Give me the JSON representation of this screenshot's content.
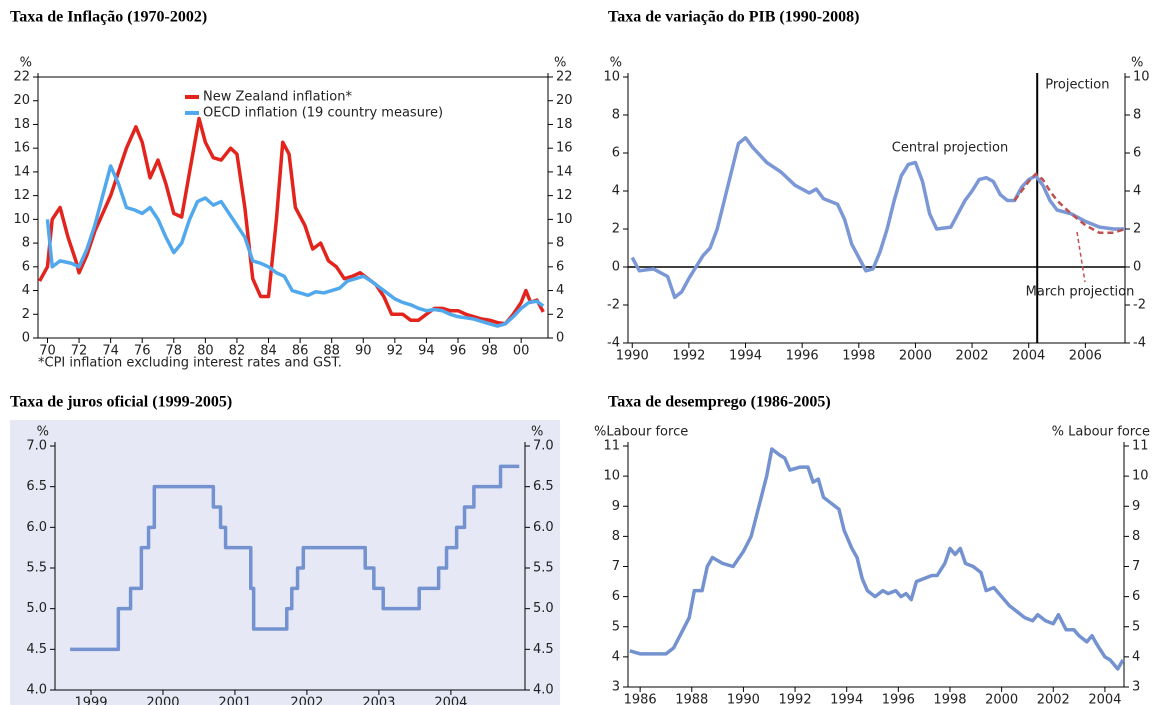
{
  "chart_data": [
    {
      "type": "line",
      "title": "Taxa de Inflação (1970-2002)",
      "y_unit_left": "%",
      "y_unit_right": "%",
      "xlim": [
        1969.4,
        2001.7
      ],
      "xticks": [
        {
          "value": 1970,
          "label": "70"
        },
        {
          "value": 1972,
          "label": "72"
        },
        {
          "value": 1974,
          "label": "74"
        },
        {
          "value": 1976,
          "label": "76"
        },
        {
          "value": 1978,
          "label": "78"
        },
        {
          "value": 1980,
          "label": "80"
        },
        {
          "value": 1982,
          "label": "82"
        },
        {
          "value": 1984,
          "label": "84"
        },
        {
          "value": 1986,
          "label": "86"
        },
        {
          "value": 1988,
          "label": "88"
        },
        {
          "value": 1990,
          "label": "90"
        },
        {
          "value": 1992,
          "label": "92"
        },
        {
          "value": 1994,
          "label": "94"
        },
        {
          "value": 1996,
          "label": "96"
        },
        {
          "value": 1998,
          "label": "98"
        },
        {
          "value": 2000,
          "label": "00"
        }
      ],
      "ylim": [
        0,
        22
      ],
      "yticks": [
        0,
        2,
        4,
        6,
        8,
        10,
        12,
        14,
        16,
        18,
        20,
        22
      ],
      "legend": "top",
      "note": "*CPI inflation excluding interest rates and GST.",
      "series": [
        {
          "name": "New Zealand inflation*",
          "color": "#e3241c",
          "x": [
            1969.5,
            1970,
            1970.3,
            1970.8,
            1971.3,
            1971.8,
            1972,
            1972.5,
            1973,
            1973.5,
            1974,
            1974.5,
            1975,
            1975.6,
            1976,
            1976.5,
            1977,
            1977.5,
            1978,
            1978.5,
            1979,
            1979.6,
            1980,
            1980.5,
            1981,
            1981.6,
            1982,
            1982.5,
            1983,
            1983.5,
            1984,
            1984.5,
            1984.9,
            1985.3,
            1985.7,
            1986.3,
            1986.8,
            1987.3,
            1987.8,
            1988.3,
            1988.8,
            1989.3,
            1989.8,
            1990.3,
            1990.8,
            1991.3,
            1991.8,
            1992.5,
            1993,
            1993.5,
            1994,
            1994.5,
            1995,
            1995.5,
            1996,
            1996.5,
            1997,
            1997.5,
            1998,
            1998.5,
            1999,
            1999.5,
            2000,
            2000.3,
            2000.6,
            2001,
            2001.4
          ],
          "values": [
            4.8,
            6,
            10,
            11,
            8.5,
            6.5,
            5.5,
            7,
            9,
            10.5,
            12,
            14,
            16,
            17.8,
            16.5,
            13.5,
            15,
            13,
            10.5,
            10.2,
            14,
            18.5,
            16.5,
            15.2,
            15,
            16,
            15.5,
            11,
            5,
            3.5,
            3.5,
            10,
            16.5,
            15.5,
            11,
            9.5,
            7.5,
            8,
            6.5,
            6,
            5,
            5.2,
            5.5,
            5,
            4.5,
            3.5,
            2,
            2,
            1.5,
            1.5,
            2,
            2.5,
            2.5,
            2.3,
            2.3,
            2,
            1.8,
            1.6,
            1.5,
            1.3,
            1.2,
            2,
            3,
            4,
            3,
            3.2,
            2.2
          ]
        },
        {
          "name": "OECD inflation (19 country measure)",
          "color": "#52a8ec",
          "x": [
            1970,
            1970.3,
            1970.8,
            1971.5,
            1972,
            1972.5,
            1973,
            1973.5,
            1974,
            1974.5,
            1975,
            1975.5,
            1976,
            1976.5,
            1977,
            1977.5,
            1978,
            1978.5,
            1979,
            1979.5,
            1980,
            1980.5,
            1981,
            1981.5,
            1982,
            1982.5,
            1983,
            1983.5,
            1984,
            1984.5,
            1985,
            1985.5,
            1986,
            1986.5,
            1987,
            1987.5,
            1988,
            1988.5,
            1989,
            1989.5,
            1990,
            1990.5,
            1991,
            1991.5,
            1992,
            1992.5,
            1993,
            1993.5,
            1994,
            1994.5,
            1995,
            1995.5,
            1996,
            1996.5,
            1997,
            1997.5,
            1998,
            1998.5,
            1999,
            1999.5,
            2000,
            2000.5,
            2001,
            2001.4
          ],
          "values": [
            10,
            6,
            6.5,
            6.3,
            6,
            7.5,
            9.5,
            12,
            14.5,
            13,
            11,
            10.8,
            10.5,
            11,
            10,
            8.5,
            7.2,
            8,
            10,
            11.5,
            11.8,
            11.2,
            11.5,
            10.5,
            9.5,
            8.5,
            6.5,
            6.3,
            6,
            5.5,
            5.2,
            4,
            3.8,
            3.6,
            3.9,
            3.8,
            4,
            4.2,
            4.8,
            5,
            5.2,
            4.8,
            4.3,
            3.8,
            3.3,
            3,
            2.8,
            2.5,
            2.3,
            2.4,
            2.3,
            2,
            1.8,
            1.7,
            1.6,
            1.4,
            1.2,
            1,
            1.2,
            1.8,
            2.5,
            3,
            3.1,
            2.7
          ]
        }
      ]
    },
    {
      "type": "line",
      "title": "Taxa de variação do PIB (1990-2008)",
      "y_unit_left": "%",
      "y_unit_right": "%",
      "xlim": [
        1989.85,
        2007.4
      ],
      "xticks": [
        1990,
        1992,
        1994,
        1996,
        1998,
        2000,
        2002,
        2004,
        2006
      ],
      "ylim": [
        -4,
        10
      ],
      "yticks": [
        -4,
        -2,
        0,
        2,
        4,
        6,
        8,
        10
      ],
      "hline": 0,
      "vline": {
        "value": 2004.3,
        "label": "Projection"
      },
      "series": [
        {
          "name": "Central projection",
          "color": "#7b97d6",
          "x": [
            1990,
            1990.25,
            1990.75,
            1991.25,
            1991.5,
            1991.75,
            1992,
            1992.5,
            1992.75,
            1993,
            1993.25,
            1993.5,
            1993.75,
            1994,
            1994.25,
            1994.75,
            1995.25,
            1995.75,
            1996.25,
            1996.5,
            1996.75,
            1997.25,
            1997.5,
            1997.75,
            1998,
            1998.25,
            1998.5,
            1998.75,
            1999,
            1999.25,
            1999.5,
            1999.75,
            2000,
            2000.25,
            2000.5,
            2000.75,
            2001.25,
            2001.5,
            2001.75,
            2002,
            2002.25,
            2002.5,
            2002.75,
            2003,
            2003.25,
            2003.5,
            2003.75,
            2004,
            2004.25,
            2004.5,
            2004.75,
            2005,
            2005.5,
            2006,
            2006.5,
            2007,
            2007.4
          ],
          "values": [
            0.5,
            -0.2,
            -0.1,
            -0.5,
            -1.6,
            -1.3,
            -0.6,
            0.6,
            1,
            2,
            3.5,
            5,
            6.5,
            6.8,
            6.3,
            5.5,
            5,
            4.3,
            3.9,
            4.1,
            3.6,
            3.3,
            2.5,
            1.2,
            0.5,
            -0.2,
            -0.1,
            0.8,
            2,
            3.5,
            4.8,
            5.4,
            5.5,
            4.5,
            2.8,
            2,
            2.1,
            2.8,
            3.5,
            4,
            4.6,
            4.7,
            4.5,
            3.8,
            3.5,
            3.5,
            4.2,
            4.6,
            4.8,
            4.3,
            3.5,
            3,
            2.8,
            2.4,
            2.1,
            2,
            2
          ]
        },
        {
          "name": "March projection",
          "color": "#c0504d",
          "linestyle": "dashed",
          "x": [
            2003.5,
            2003.75,
            2004,
            2004.25,
            2004.5,
            2004.75,
            2005,
            2005.5,
            2006,
            2006.5,
            2007,
            2007.4
          ],
          "values": [
            3.5,
            4,
            4.5,
            4.9,
            4.6,
            4,
            3.5,
            2.8,
            2.2,
            1.8,
            1.8,
            2
          ]
        }
      ]
    },
    {
      "type": "step",
      "title": "Taxa de juros oficial (1999-2005)",
      "y_unit_left": "%",
      "y_unit_right": "%",
      "xlim": [
        1999,
        2005.53
      ],
      "xticks": [
        {
          "value": 1999.5,
          "label": "1999"
        },
        {
          "value": 2000.5,
          "label": "2000"
        },
        {
          "value": 2001.5,
          "label": "2001"
        },
        {
          "value": 2002.5,
          "label": "2002"
        },
        {
          "value": 2003.5,
          "label": "2003"
        },
        {
          "value": 2004.5,
          "label": "2004"
        }
      ],
      "ylim": [
        4,
        7
      ],
      "yticks": [
        {
          "value": 4,
          "label": "4.0"
        },
        4.5,
        {
          "value": 5,
          "label": "5.0"
        },
        5.5,
        {
          "value": 6,
          "label": "6.0"
        },
        6.5,
        {
          "value": 7,
          "label": "7.0"
        }
      ],
      "series": [
        {
          "color": "#7392cf",
          "x": [
            1999.21,
            1999.88,
            2000.05,
            2000.2,
            2000.3,
            2000.38,
            2001.2,
            2001.3,
            2001.37,
            2001.72,
            2001.76,
            2002.22,
            2002.29,
            2002.37,
            2002.45,
            2003.31,
            2003.43,
            2003.56,
            2004.06,
            2004.33,
            2004.44,
            2004.58,
            2004.69,
            2004.82,
            2005.19,
            2005.45
          ],
          "values": [
            4.5,
            5,
            5.25,
            5.75,
            6,
            6.5,
            6.25,
            6,
            5.75,
            5.25,
            4.75,
            5,
            5.25,
            5.5,
            5.75,
            5.5,
            5.25,
            5,
            5.25,
            5.5,
            5.75,
            6,
            6.25,
            6.5,
            6.75,
            6.75
          ]
        }
      ]
    },
    {
      "type": "line",
      "title": "Taxa de desemprego (1986-2005)",
      "y_unit_left": "%Labour force",
      "y_unit_right": "% Labour force",
      "xlim": [
        1985.53,
        2004.74
      ],
      "xticks": [
        1986,
        1988,
        1990,
        1992,
        1994,
        1996,
        1998,
        2000,
        2002,
        2004
      ],
      "ylim": [
        3,
        11
      ],
      "yticks": [
        3,
        4,
        5,
        6,
        7,
        8,
        9,
        10,
        11
      ],
      "series": [
        {
          "color": "#7392cf",
          "x": [
            1985.6,
            1986,
            1986.5,
            1987,
            1987.3,
            1987.6,
            1987.9,
            1988.1,
            1988.4,
            1988.6,
            1988.8,
            1989.2,
            1989.6,
            1990,
            1990.3,
            1990.6,
            1990.9,
            1991.1,
            1991.4,
            1991.6,
            1991.8,
            1992.2,
            1992.5,
            1992.7,
            1992.9,
            1993.1,
            1993.4,
            1993.7,
            1993.9,
            1994.2,
            1994.4,
            1994.6,
            1994.8,
            1995.1,
            1995.4,
            1995.6,
            1995.9,
            1996.1,
            1996.3,
            1996.5,
            1996.7,
            1997,
            1997.3,
            1997.5,
            1997.8,
            1998,
            1998.2,
            1998.4,
            1998.6,
            1998.9,
            1999.2,
            1999.4,
            1999.7,
            2000,
            2000.3,
            2000.6,
            2000.9,
            2001.2,
            2001.4,
            2001.7,
            2002,
            2002.2,
            2002.5,
            2002.8,
            2003,
            2003.3,
            2003.5,
            2003.7,
            2004,
            2004.2,
            2004.4,
            2004.5,
            2004.7
          ],
          "values": [
            4.2,
            4.1,
            4.1,
            4.1,
            4.3,
            4.8,
            5.3,
            6.2,
            6.2,
            7,
            7.3,
            7.1,
            7,
            7.5,
            8,
            9,
            10,
            10.9,
            10.7,
            10.6,
            10.2,
            10.3,
            10.3,
            9.8,
            9.9,
            9.3,
            9.1,
            8.9,
            8.2,
            7.6,
            7.3,
            6.6,
            6.2,
            6,
            6.2,
            6.1,
            6.2,
            6,
            6.1,
            5.9,
            6.5,
            6.6,
            6.7,
            6.7,
            7.1,
            7.6,
            7.4,
            7.6,
            7.1,
            7,
            6.8,
            6.2,
            6.3,
            6,
            5.7,
            5.5,
            5.3,
            5.2,
            5.4,
            5.2,
            5.1,
            5.4,
            4.9,
            4.9,
            4.7,
            4.5,
            4.7,
            4.4,
            4,
            3.9,
            3.7,
            3.6,
            3.9
          ]
        }
      ]
    }
  ]
}
